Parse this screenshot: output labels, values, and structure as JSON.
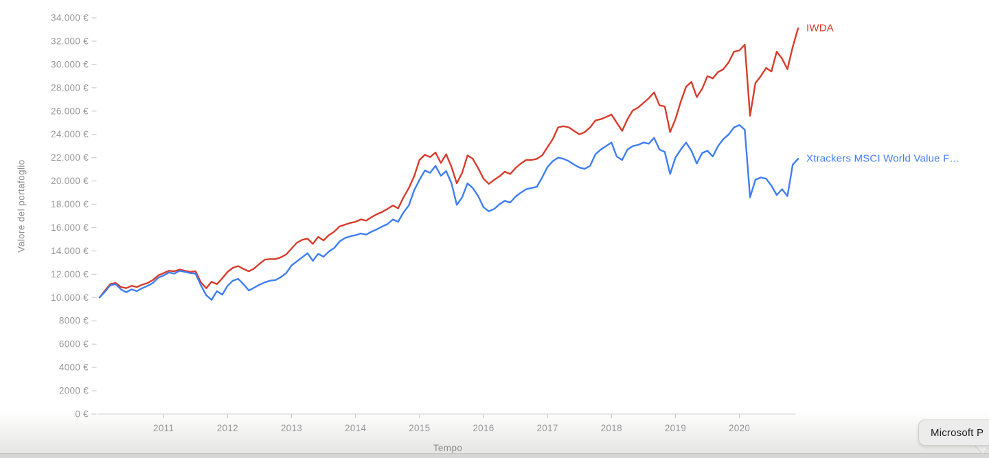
{
  "tooltip": {
    "label": "Microsoft P"
  },
  "chart_data": {
    "type": "line",
    "title": "",
    "xlabel": "Tempo",
    "ylabel": "Valore del portafoglio",
    "x_unit": "months",
    "x_start": "2010-01",
    "x_end": "2020-12",
    "x_ticks": [
      2011,
      2012,
      2013,
      2014,
      2015,
      2016,
      2017,
      2018,
      2019,
      2020
    ],
    "ylim": [
      0,
      34000
    ],
    "grid": false,
    "legend_position": "line-end",
    "colors": {
      "axis_line": "#d8d8d8",
      "tick_mark": "#cccccc",
      "tick_label": "#97979a",
      "axis_title": "#8e8e90",
      "iwda_red": "#d93b2b",
      "xtrackers_blue": "#3e7df4"
    },
    "y_ticks": [
      {
        "value": 34000,
        "label": "34.000 €"
      },
      {
        "value": 32000,
        "label": "32.000 €"
      },
      {
        "value": 30000,
        "label": "30.000 €"
      },
      {
        "value": 28000,
        "label": "28.000 €"
      },
      {
        "value": 26000,
        "label": "26.000 €"
      },
      {
        "value": 24000,
        "label": "24.000 €"
      },
      {
        "value": 22000,
        "label": "22.000 €"
      },
      {
        "value": 20000,
        "label": "20.000 €"
      },
      {
        "value": 18000,
        "label": "18.000 €"
      },
      {
        "value": 16000,
        "label": "16.000 €"
      },
      {
        "value": 14000,
        "label": "14.000 €"
      },
      {
        "value": 12000,
        "label": "12.000 €"
      },
      {
        "value": 10000,
        "label": "10.000 €"
      },
      {
        "value": 8000,
        "label": "8000 €"
      },
      {
        "value": 6000,
        "label": "6000 €"
      },
      {
        "value": 4000,
        "label": "4000 €"
      },
      {
        "value": 2000,
        "label": "2000 €"
      },
      {
        "value": 0,
        "label": "0 €"
      }
    ],
    "series": [
      {
        "name": "IWDA",
        "label": "IWDA",
        "color": "#d93b2b",
        "values": [
          10000,
          10600,
          11150,
          11250,
          10900,
          10800,
          11000,
          10900,
          11100,
          11250,
          11500,
          11900,
          12100,
          12300,
          12250,
          12400,
          12300,
          12200,
          12250,
          11300,
          10800,
          11350,
          11150,
          11650,
          12200,
          12550,
          12700,
          12450,
          12250,
          12500,
          12900,
          13250,
          13300,
          13300,
          13450,
          13700,
          14200,
          14700,
          14950,
          15050,
          14600,
          15200,
          14900,
          15350,
          15650,
          16100,
          16250,
          16400,
          16500,
          16700,
          16600,
          16900,
          17150,
          17350,
          17600,
          17900,
          17650,
          18600,
          19400,
          20400,
          21800,
          22250,
          22050,
          22450,
          21550,
          22300,
          21200,
          19800,
          20700,
          22200,
          21900,
          21100,
          20200,
          19750,
          20100,
          20400,
          20800,
          20600,
          21100,
          21500,
          21800,
          21800,
          21900,
          22200,
          22900,
          23600,
          24600,
          24700,
          24600,
          24300,
          24000,
          24200,
          24600,
          25200,
          25300,
          25500,
          25700,
          25000,
          24300,
          25300,
          26050,
          26300,
          26700,
          27100,
          27600,
          26500,
          26400,
          24200,
          25300,
          26800,
          28100,
          28500,
          27200,
          27900,
          29000,
          28800,
          29350,
          29600,
          30200,
          31100,
          31200,
          31700,
          25600,
          28400,
          29000,
          29700,
          29400,
          31100,
          30500,
          29600,
          31500,
          33100
        ]
      },
      {
        "name": "Xtrackers MSCI World Value F…",
        "label": "Xtrackers MSCI World Value F…",
        "color": "#3e7df4",
        "values": [
          10000,
          10500,
          11050,
          11150,
          10700,
          10450,
          10700,
          10550,
          10800,
          11000,
          11250,
          11700,
          11900,
          12150,
          12050,
          12300,
          12200,
          12100,
          12050,
          11050,
          10200,
          9800,
          10550,
          10250,
          11000,
          11450,
          11600,
          11150,
          10600,
          10850,
          11100,
          11300,
          11450,
          11500,
          11750,
          12100,
          12750,
          13100,
          13450,
          13800,
          13150,
          13750,
          13500,
          13950,
          14250,
          14800,
          15100,
          15250,
          15350,
          15500,
          15400,
          15650,
          15850,
          16100,
          16300,
          16700,
          16500,
          17300,
          17900,
          19200,
          20100,
          20900,
          20700,
          21300,
          20450,
          20850,
          19800,
          17950,
          18600,
          19800,
          19400,
          18700,
          17750,
          17400,
          17600,
          18000,
          18300,
          18150,
          18650,
          19000,
          19300,
          19400,
          19500,
          20300,
          21200,
          21700,
          22000,
          21900,
          21700,
          21400,
          21150,
          21050,
          21300,
          22300,
          22700,
          23000,
          23300,
          22100,
          21800,
          22700,
          23000,
          23100,
          23300,
          23200,
          23700,
          22700,
          22500,
          20600,
          22000,
          22700,
          23300,
          22600,
          21500,
          22400,
          22600,
          22100,
          23000,
          23600,
          24000,
          24600,
          24800,
          24400,
          18600,
          20100,
          20300,
          20200,
          19600,
          18800,
          19300,
          18700,
          21400,
          21900
        ]
      }
    ]
  }
}
